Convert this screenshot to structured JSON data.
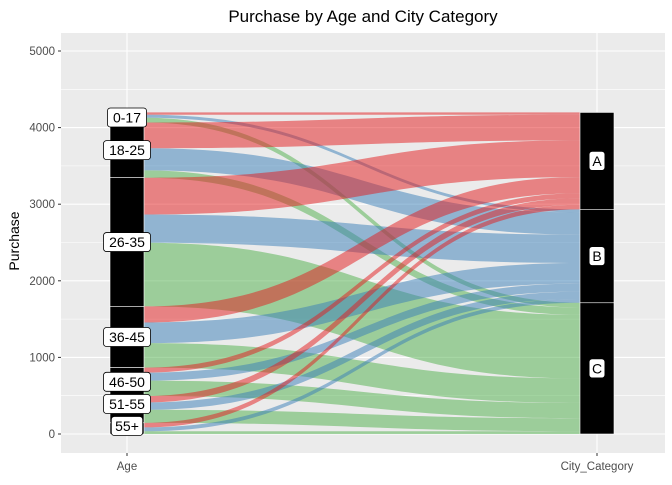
{
  "chart_data": {
    "type": "alluvial",
    "title": "Purchase  by Age and City Category",
    "ylabel": "Purchase",
    "xlabel": "",
    "x_axes": [
      "Age",
      "City_Category"
    ],
    "ylim": [
      0,
      5000
    ],
    "yticks": [
      0,
      1000,
      2000,
      3000,
      4000,
      5000
    ],
    "grid": true,
    "age_groups": [
      "0-17",
      "18-25",
      "26-35",
      "36-45",
      "46-50",
      "51-55",
      "55+"
    ],
    "city_categories": [
      "A",
      "B",
      "C"
    ],
    "flows": [
      {
        "age": "0-17",
        "city": "A",
        "value": 30
      },
      {
        "age": "0-17",
        "city": "B",
        "value": 40
      },
      {
        "age": "0-17",
        "city": "C",
        "value": 62
      },
      {
        "age": "18-25",
        "city": "A",
        "value": 335
      },
      {
        "age": "18-25",
        "city": "B",
        "value": 290
      },
      {
        "age": "18-25",
        "city": "C",
        "value": 95
      },
      {
        "age": "26-35",
        "city": "A",
        "value": 480
      },
      {
        "age": "26-35",
        "city": "B",
        "value": 370
      },
      {
        "age": "26-35",
        "city": "C",
        "value": 830
      },
      {
        "age": "36-45",
        "city": "A",
        "value": 210
      },
      {
        "age": "36-45",
        "city": "B",
        "value": 270
      },
      {
        "age": "36-45",
        "city": "C",
        "value": 320
      },
      {
        "age": "46-50",
        "city": "A",
        "value": 65
      },
      {
        "age": "46-50",
        "city": "B",
        "value": 105
      },
      {
        "age": "46-50",
        "city": "C",
        "value": 200
      },
      {
        "age": "51-55",
        "city": "A",
        "value": 85
      },
      {
        "age": "51-55",
        "city": "B",
        "value": 95
      },
      {
        "age": "51-55",
        "city": "C",
        "value": 170
      },
      {
        "age": "55+",
        "city": "A",
        "value": 60
      },
      {
        "age": "55+",
        "city": "B",
        "value": 50
      },
      {
        "age": "55+",
        "city": "C",
        "value": 36
      }
    ],
    "colors": {
      "A": "#E41A1C",
      "B": "#377EB8",
      "C": "#4DAF4A"
    },
    "flow_opacity": 0.5,
    "panel_background": "#EBEBEB",
    "stratum_fill": "#000000"
  }
}
